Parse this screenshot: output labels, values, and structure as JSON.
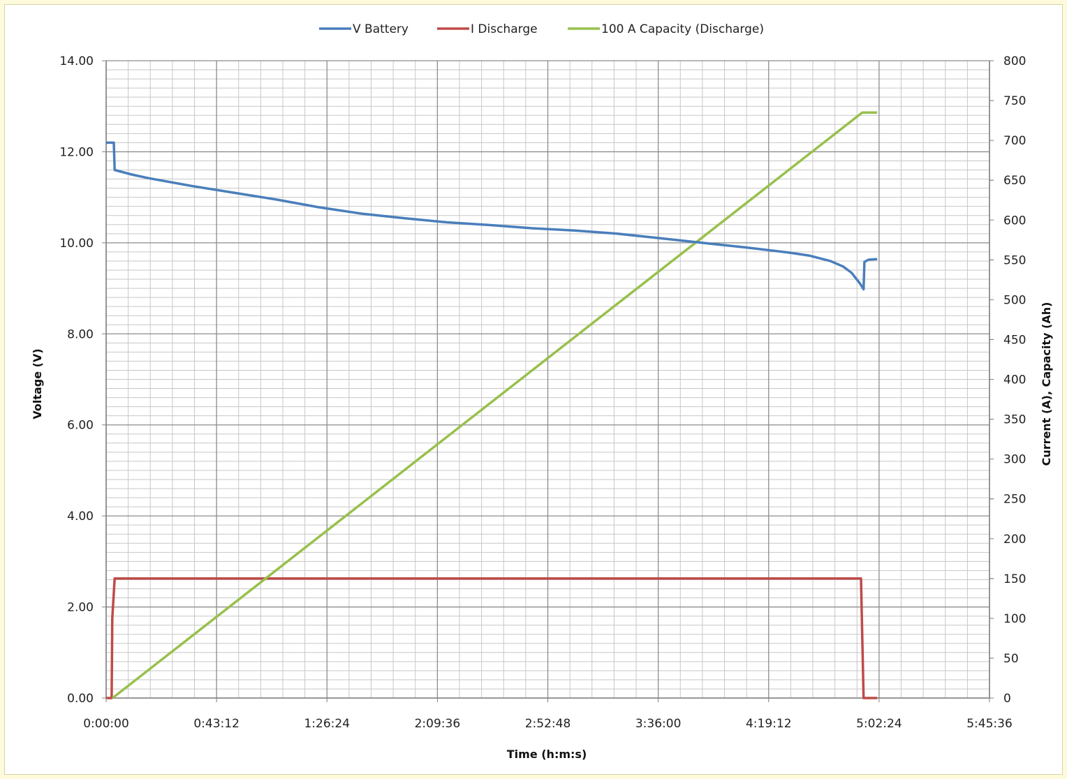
{
  "chart_data": {
    "type": "line",
    "title": "",
    "xlabel": "Time (h:m:s)",
    "ylabel": "Voltage (V)",
    "y2label": "Current (A), Capacity (Ah)",
    "legend_position": "top",
    "grid": true,
    "xlim": [
      0,
      20736
    ],
    "ylim": [
      0,
      14
    ],
    "y2lim": [
      0,
      800
    ],
    "x_ticks": [
      0,
      2592,
      5184,
      7776,
      10368,
      12960,
      15552,
      18144,
      20736
    ],
    "x_tick_labels": [
      "0:00:00",
      "0:43:12",
      "1:26:24",
      "2:09:36",
      "2:52:48",
      "3:36:00",
      "4:19:12",
      "5:02:24",
      "5:45:36"
    ],
    "y_ticks": [
      0,
      2,
      4,
      6,
      8,
      10,
      12,
      14
    ],
    "y_tick_labels": [
      "0.00",
      "2.00",
      "4.00",
      "6.00",
      "8.00",
      "10.00",
      "12.00",
      "14.00"
    ],
    "y2_ticks": [
      0,
      50,
      100,
      150,
      200,
      250,
      300,
      350,
      400,
      450,
      500,
      550,
      600,
      650,
      700,
      750,
      800
    ],
    "y2_tick_labels": [
      "0",
      "50",
      "100",
      "150",
      "200",
      "250",
      "300",
      "350",
      "400",
      "450",
      "500",
      "550",
      "600",
      "650",
      "700",
      "750",
      "800"
    ],
    "series": [
      {
        "name": "V Battery",
        "axis": "left",
        "color": "#4a7ebb",
        "points": [
          [
            0,
            12.2
          ],
          [
            180,
            12.2
          ],
          [
            200,
            11.6
          ],
          [
            600,
            11.5
          ],
          [
            1000,
            11.42
          ],
          [
            2000,
            11.25
          ],
          [
            3000,
            11.1
          ],
          [
            4000,
            10.95
          ],
          [
            5000,
            10.78
          ],
          [
            6000,
            10.64
          ],
          [
            7000,
            10.54
          ],
          [
            8000,
            10.45
          ],
          [
            9000,
            10.39
          ],
          [
            10000,
            10.32
          ],
          [
            11000,
            10.27
          ],
          [
            12000,
            10.2
          ],
          [
            13000,
            10.1
          ],
          [
            14000,
            10.0
          ],
          [
            15000,
            9.9
          ],
          [
            16000,
            9.79
          ],
          [
            16500,
            9.72
          ],
          [
            17000,
            9.6
          ],
          [
            17300,
            9.48
          ],
          [
            17500,
            9.34
          ],
          [
            17700,
            9.1
          ],
          [
            17780,
            8.98
          ],
          [
            17800,
            9.58
          ],
          [
            17900,
            9.63
          ],
          [
            18100,
            9.64
          ]
        ]
      },
      {
        "name": "I Discharge",
        "axis": "right",
        "color": "#be4b48",
        "points": [
          [
            0,
            0
          ],
          [
            130,
            0
          ],
          [
            145,
            100
          ],
          [
            200,
            150
          ],
          [
            17720,
            150
          ],
          [
            17780,
            0
          ],
          [
            18100,
            0
          ]
        ]
      },
      {
        "name": "100 A Capacity (Discharge)",
        "axis": "right",
        "color": "#98c04c",
        "points": [
          [
            150,
            0
          ],
          [
            17750,
            735
          ],
          [
            18100,
            735
          ]
        ]
      }
    ]
  }
}
